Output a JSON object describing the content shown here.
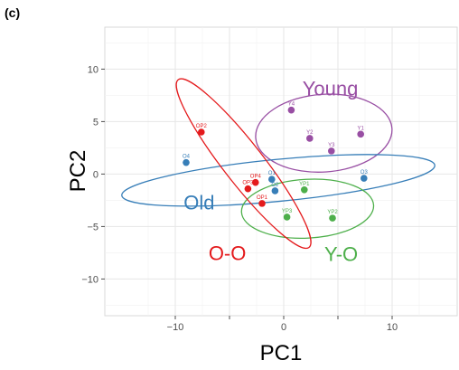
{
  "panel_label": "(c)",
  "chart_data": {
    "type": "scatter",
    "xlabel": "PC1",
    "ylabel": "PC2",
    "xlim": [
      -16.5,
      16
    ],
    "ylim": [
      -13.5,
      14
    ],
    "xticks": [
      -10,
      -5,
      0,
      5,
      10
    ],
    "yticks": [
      -10,
      -5,
      0,
      5,
      10
    ],
    "x_tick_labels": [
      "−10",
      "",
      "0",
      "",
      "10"
    ],
    "y_tick_labels": [
      "−10",
      "−5",
      "0",
      "5",
      "10"
    ],
    "grid": true,
    "series": [
      {
        "name": "Young",
        "color": "#984EA3",
        "points": [
          {
            "label": "Y4",
            "x": 0.7,
            "y": 6.1
          },
          {
            "label": "Y1",
            "x": 7.1,
            "y": 3.8
          },
          {
            "label": "Y2",
            "x": 2.4,
            "y": 3.4
          },
          {
            "label": "Y3",
            "x": 4.4,
            "y": 2.2
          }
        ]
      },
      {
        "name": "Old",
        "color": "#377EB8",
        "points": [
          {
            "label": "O4",
            "x": -9.0,
            "y": 1.1
          },
          {
            "label": "O1",
            "x": -1.1,
            "y": -0.5
          },
          {
            "label": "O2",
            "x": -0.8,
            "y": -1.6
          },
          {
            "label": "O3",
            "x": 7.4,
            "y": -0.4
          }
        ]
      },
      {
        "name": "Y-O",
        "color": "#4DAF4A",
        "points": [
          {
            "label": "YP1",
            "x": 1.9,
            "y": -1.5
          },
          {
            "label": "YP3",
            "x": 0.3,
            "y": -4.1
          },
          {
            "label": "YP2",
            "x": 4.5,
            "y": -4.2
          }
        ]
      },
      {
        "name": "O-O",
        "color": "#E41A1C",
        "points": [
          {
            "label": "OP2",
            "x": -7.6,
            "y": 4.0
          },
          {
            "label": "OP4",
            "x": -2.6,
            "y": -0.8
          },
          {
            "label": "OP3",
            "x": -3.3,
            "y": -1.4
          },
          {
            "label": "OP1",
            "x": -2.0,
            "y": -2.8
          }
        ]
      }
    ],
    "ellipses": [
      {
        "group": "Young",
        "cx": 3.7,
        "cy": 3.9,
        "rx": 6.3,
        "ry": 3.7,
        "angle_deg": 4,
        "color": "#984EA3"
      },
      {
        "group": "Old",
        "cx": -0.5,
        "cy": -0.6,
        "rx": 14.5,
        "ry": 2.0,
        "angle_deg": 5.5,
        "color": "#377EB8"
      },
      {
        "group": "Y-O",
        "cx": 2.2,
        "cy": -3.3,
        "rx": 6.1,
        "ry": 2.8,
        "angle_deg": 3,
        "color": "#4DAF4A"
      },
      {
        "group": "O-O",
        "cx": -3.7,
        "cy": 1.0,
        "rx": 9.8,
        "ry": 1.9,
        "angle_deg": -52,
        "color": "#E41A1C"
      }
    ],
    "group_labels": [
      {
        "text": "Young",
        "x": 4.3,
        "y": 8.2,
        "color": "#984EA3"
      },
      {
        "text": "Old",
        "x": -7.8,
        "y": -2.7,
        "color": "#377EB8"
      },
      {
        "text": "O-O",
        "x": -5.2,
        "y": -7.5,
        "color": "#E41A1C"
      },
      {
        "text": "Y-O",
        "x": 5.3,
        "y": -7.6,
        "color": "#4DAF4A"
      }
    ]
  }
}
